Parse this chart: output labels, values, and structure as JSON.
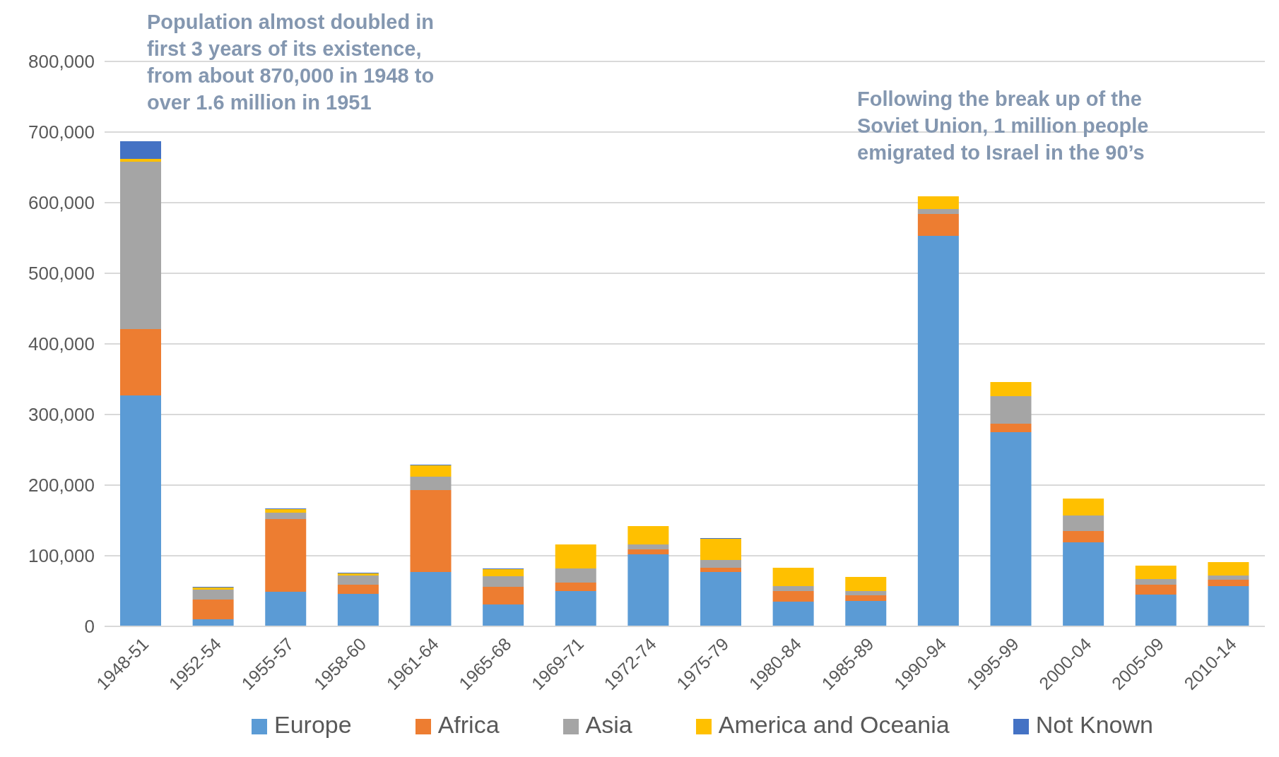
{
  "chart_data": {
    "type": "bar",
    "stacked": true,
    "categories": [
      "1948-51",
      "1952-54",
      "1955-57",
      "1958-60",
      "1961-64",
      "1965-68",
      "1969-71",
      "1972-74",
      "1975-79",
      "1980-84",
      "1985-89",
      "1990-94",
      "1995-99",
      "2000-04",
      "2005-09",
      "2010-14"
    ],
    "series": [
      {
        "name": "Europe",
        "color": "#5b9bd5",
        "values": [
          327000,
          10000,
          49000,
          46000,
          77000,
          31000,
          50000,
          102000,
          77000,
          35000,
          36000,
          553000,
          275000,
          119000,
          45000,
          57000
        ]
      },
      {
        "name": "Africa",
        "color": "#ed7d31",
        "values": [
          94000,
          28000,
          103000,
          13000,
          116000,
          25000,
          12000,
          7000,
          6000,
          15000,
          8000,
          31000,
          12000,
          16000,
          14000,
          9000
        ]
      },
      {
        "name": "Asia",
        "color": "#a5a5a5",
        "values": [
          237000,
          14000,
          9000,
          13000,
          19000,
          15000,
          20000,
          7000,
          11000,
          7000,
          6000,
          7000,
          39000,
          22000,
          8000,
          6000
        ]
      },
      {
        "name": "America and Oceania",
        "color": "#ffc000",
        "values": [
          4000,
          3000,
          5000,
          3000,
          16000,
          10000,
          34000,
          26000,
          30000,
          26000,
          20000,
          18000,
          20000,
          24000,
          19000,
          19000
        ]
      },
      {
        "name": "Not Known",
        "color": "#4472c4",
        "values": [
          25000,
          1000,
          1000,
          1000,
          1000,
          1000,
          0,
          0,
          1000,
          0,
          0,
          0,
          0,
          0,
          0,
          0
        ]
      }
    ],
    "ylim": [
      0,
      800000
    ],
    "yticks": [
      0,
      {
        "value": 100000,
        "label": "100,000"
      },
      {
        "value": 200000,
        "label": "200,000"
      },
      {
        "value": 300000,
        "label": "300,000"
      },
      {
        "value": 400000,
        "label": "400,000"
      },
      {
        "value": 500000,
        "label": "500,000"
      },
      {
        "value": 600000,
        "label": "600,000"
      },
      {
        "value": 700000,
        "label": "700,000"
      },
      {
        "value": 800000,
        "label": "800,000"
      }
    ],
    "grid": "y",
    "legend": "bottom",
    "annotations": [
      "Population almost doubled in first 3 years of its existence, from about 870,000 in 1948 to over 1.6 million in 1951",
      "Following the break up of the Soviet Union, 1 million people emigrated to Israel in the 90’s"
    ]
  }
}
